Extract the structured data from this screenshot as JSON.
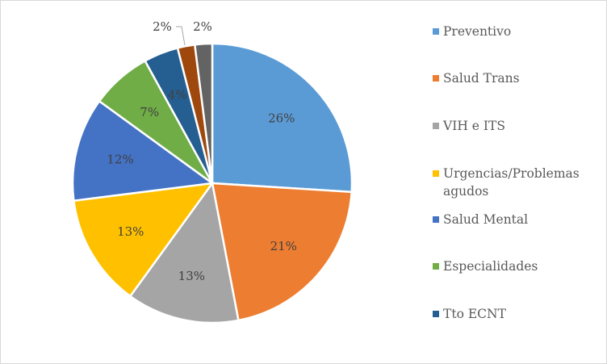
{
  "chart_data": {
    "type": "pie",
    "start_angle_deg": 0,
    "direction": "clockwise",
    "slices": [
      {
        "name": "Preventivo",
        "value": 26,
        "label": "26%",
        "color": "#5B9BD5"
      },
      {
        "name": "Salud Trans",
        "value": 21,
        "label": "21%",
        "color": "#ED7D31"
      },
      {
        "name": "VIH e ITS",
        "value": 13,
        "label": "13%",
        "color": "#A5A5A5"
      },
      {
        "name": "Urgencias/Problemas agudos",
        "value": 13,
        "label": "13%",
        "color": "#FFC000"
      },
      {
        "name": "Salud Mental",
        "value": 12,
        "label": "12%",
        "color": "#4472C4"
      },
      {
        "name": "Especialidades",
        "value": 7,
        "label": "7%",
        "color": "#70AD47"
      },
      {
        "name": "Tto ECNT",
        "value": 4,
        "label": "4%",
        "color": "#255E91"
      },
      {
        "name": "",
        "value": 2,
        "label": "2%",
        "color": "#9E480E"
      },
      {
        "name": "",
        "value": 2,
        "label": "2%",
        "color": "#636363"
      }
    ],
    "legend": {
      "placement": "right",
      "entries": [
        "Preventivo",
        "Salud Trans",
        "VIH e ITS",
        "Urgencias/Problemas agudos",
        "Salud Mental",
        "Especialidades",
        "Tto ECNT"
      ]
    }
  }
}
